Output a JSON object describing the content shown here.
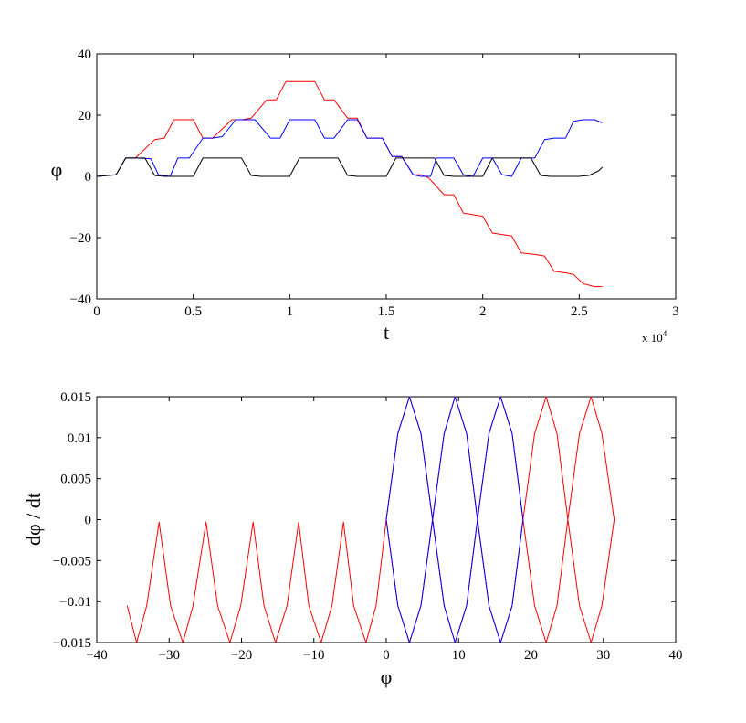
{
  "chart_data": [
    {
      "type": "line",
      "xlabel": "t",
      "ylabel": "φ",
      "xlim": [
        0,
        3
      ],
      "ylim": [
        -40,
        40
      ],
      "x_multiplier": {
        "prefix": "x 10",
        "exponent": "4"
      },
      "xticks": [
        0,
        0.5,
        1,
        1.5,
        2,
        2.5,
        3
      ],
      "xtick_labels": [
        "0",
        "0.5",
        "1",
        "1.5",
        "2",
        "2.5",
        "3"
      ],
      "yticks": [
        -40,
        -20,
        0,
        20,
        40
      ],
      "ytick_labels": [
        "−40",
        "−20",
        "0",
        "20",
        "40"
      ],
      "grid": false,
      "series": [
        {
          "color": "#ff0000",
          "x": [
            0,
            0.1,
            0.15,
            0.2,
            0.3,
            0.35,
            0.4,
            0.5,
            0.55,
            0.6,
            0.7,
            0.75,
            0.8,
            0.88,
            0.93,
            0.98,
            1.13,
            1.18,
            1.23,
            1.3,
            1.35,
            1.4,
            1.48,
            1.53,
            1.58,
            1.64,
            1.68,
            1.72,
            1.8,
            1.85,
            1.9,
            1.95,
            2.0,
            2.05,
            2.1,
            2.15,
            2.2,
            2.27,
            2.32,
            2.37,
            2.43,
            2.47,
            2.52,
            2.58,
            2.62
          ],
          "y": [
            0,
            0.5,
            6,
            6,
            12,
            12.5,
            18.5,
            18.5,
            12.5,
            12.5,
            18.5,
            18.5,
            19,
            25,
            25,
            31,
            31,
            25,
            25,
            19,
            19,
            12.5,
            12.5,
            6.5,
            6.5,
            0.5,
            0.5,
            -0.5,
            -6,
            -6,
            -12,
            -12.5,
            -13,
            -18.5,
            -19,
            -19.5,
            -25,
            -25.5,
            -26,
            -31,
            -31.5,
            -32,
            -35,
            -36,
            -36
          ]
        },
        {
          "color": "#0000ff",
          "x": [
            0,
            0.1,
            0.15,
            0.2,
            0.28,
            0.32,
            0.38,
            0.42,
            0.48,
            0.55,
            0.6,
            0.65,
            0.72,
            0.77,
            0.82,
            0.9,
            0.95,
            1.0,
            1.13,
            1.18,
            1.23,
            1.3,
            1.35,
            1.4,
            1.48,
            1.53,
            1.58,
            1.64,
            1.68,
            1.73,
            1.76,
            1.8,
            1.85,
            1.9,
            1.95,
            2.0,
            2.05,
            2.1,
            2.15,
            2.2,
            2.27,
            2.32,
            2.37,
            2.43,
            2.47,
            2.52,
            2.58,
            2.62
          ],
          "y": [
            0,
            0.5,
            6,
            6,
            5.8,
            0.5,
            0,
            6,
            6,
            12.5,
            12.5,
            13,
            18.5,
            18.5,
            18.5,
            12.5,
            12.5,
            18.5,
            18.5,
            12.5,
            12.5,
            18.5,
            18.5,
            12.5,
            12.5,
            6.5,
            6.5,
            0.5,
            0,
            0,
            6,
            6,
            6,
            0.5,
            0,
            6,
            6,
            0.5,
            0,
            6,
            6,
            12,
            12.5,
            12.5,
            18,
            18.5,
            18.5,
            17.5
          ]
        },
        {
          "color": "#000000",
          "x": [
            0,
            0.1,
            0.15,
            0.2,
            0.25,
            0.3,
            0.35,
            0.5,
            0.55,
            0.6,
            0.75,
            0.8,
            0.85,
            1.0,
            1.05,
            1.1,
            1.25,
            1.3,
            1.35,
            1.5,
            1.55,
            1.6,
            1.75,
            1.8,
            1.85,
            2.0,
            2.05,
            2.1,
            2.25,
            2.3,
            2.35,
            2.5,
            2.55,
            2.6,
            2.62
          ],
          "y": [
            0,
            0.5,
            6,
            6,
            6,
            0.3,
            0,
            0,
            6,
            6,
            6,
            0.3,
            0,
            0,
            6,
            6,
            6,
            0.3,
            0,
            0,
            6,
            6,
            6,
            0.3,
            0,
            0,
            6,
            6,
            6,
            0.3,
            0,
            0,
            0.3,
            1.8,
            3
          ]
        }
      ]
    },
    {
      "type": "line",
      "xlabel": "φ",
      "ylabel": "dφ / dt",
      "xlim": [
        -40,
        40
      ],
      "ylim": [
        -0.015,
        0.015
      ],
      "xticks": [
        -40,
        -30,
        -20,
        -10,
        0,
        10,
        20,
        30,
        40
      ],
      "xtick_labels": [
        "−40",
        "−30",
        "−20",
        "−10",
        "0",
        "10",
        "20",
        "30",
        "40"
      ],
      "yticks": [
        -0.015,
        -0.01,
        -0.005,
        0,
        0.005,
        0.01,
        0.015
      ],
      "ytick_labels": [
        "−0.015",
        "−0.01",
        "−0.005",
        "0",
        "0.005",
        "0.01",
        "0.015"
      ],
      "grid": false,
      "series": [
        {
          "color": "#ff0000",
          "x": [
            -35.8,
            -34.5,
            -33.1,
            -31.4,
            -29.8,
            -28.1,
            -26.7,
            -24.9,
            -23.3,
            -21.6,
            -20.1,
            -18.4,
            -16.9,
            -15.3,
            -13.7,
            -12.1,
            -10.7,
            -9.0,
            -7.5,
            -5.9,
            -4.5,
            -2.8,
            -1.4,
            0,
            1.6,
            3.2,
            4.8,
            6.4,
            8.0,
            9.5,
            11.1,
            12.6,
            14.2,
            15.8,
            17.4,
            18.9,
            20.5,
            22.1,
            23.6,
            25.1,
            26.7,
            28.3,
            29.8,
            31.5,
            29.8,
            28.3,
            26.7,
            25.1,
            23.6,
            22.1,
            20.5,
            18.9,
            17.4,
            15.8,
            14.2,
            12.6,
            11.1,
            9.5,
            8.0,
            6.4,
            4.8,
            3.2,
            1.6,
            0
          ],
          "y": [
            -0.0105,
            -0.015,
            -0.0105,
            -0.0003,
            -0.0105,
            -0.015,
            -0.0105,
            -0.0003,
            -0.0105,
            -0.015,
            -0.0105,
            -0.0003,
            -0.0105,
            -0.015,
            -0.0105,
            -0.0003,
            -0.0105,
            -0.015,
            -0.0105,
            -0.0003,
            -0.0105,
            -0.015,
            -0.0105,
            0,
            0.0105,
            0.015,
            0.0105,
            0,
            0.0105,
            0.015,
            0.0105,
            0,
            0.0105,
            0.015,
            0.0105,
            0,
            0.0105,
            0.015,
            0.0105,
            0,
            0.0105,
            0.015,
            0.0105,
            0,
            -0.0105,
            -0.015,
            -0.0105,
            0,
            -0.0105,
            -0.015,
            -0.0105,
            0,
            -0.0105,
            -0.015,
            -0.0105,
            0,
            -0.0105,
            -0.015,
            -0.0105,
            0,
            -0.0105,
            -0.015,
            -0.0105,
            0
          ]
        },
        {
          "color": "#0000ff",
          "x": [
            0,
            1.6,
            3.2,
            4.8,
            6.4,
            8.0,
            9.5,
            11.1,
            12.6,
            14.2,
            15.8,
            17.4,
            18.9,
            17.4,
            15.8,
            14.2,
            12.6,
            11.1,
            9.5,
            8.0,
            6.4,
            4.8,
            3.2,
            1.6,
            0
          ],
          "y": [
            0,
            0.0105,
            0.015,
            0.0105,
            0,
            0.0105,
            0.015,
            0.0105,
            0,
            0.0105,
            0.015,
            0.0105,
            0,
            -0.0105,
            -0.015,
            -0.0105,
            0,
            -0.0105,
            -0.015,
            -0.0105,
            0,
            -0.0105,
            -0.015,
            -0.0105,
            0
          ]
        }
      ]
    }
  ]
}
